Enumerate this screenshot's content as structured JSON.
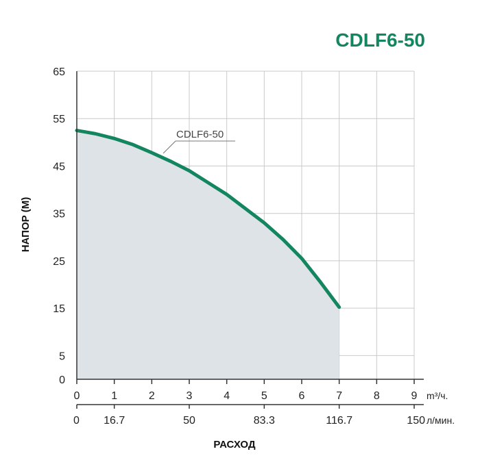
{
  "chart_data": {
    "type": "area",
    "title": "CDLF6-50",
    "ylabel": "НАПОР (М)",
    "xlabel": "РАСХОД",
    "ylim": [
      0,
      65
    ],
    "xlim": [
      0,
      9
    ],
    "y_ticks": [
      "0",
      "5",
      "15",
      "25",
      "35",
      "45",
      "55",
      "65"
    ],
    "y_tick_values": [
      0,
      5,
      15,
      25,
      35,
      45,
      55,
      65
    ],
    "x_ticks_m3h": [
      "0",
      "1",
      "2",
      "3",
      "4",
      "5",
      "6",
      "7",
      "8",
      "9"
    ],
    "x_unit_m3h": "m³/ч.",
    "x_ticks_lmin": [
      "0",
      "16.7",
      "50",
      "83.3",
      "116.7",
      "150"
    ],
    "x_ticks_lmin_positions": [
      0,
      1,
      3,
      5,
      7,
      9
    ],
    "x_unit_lmin": "л/мин.",
    "series": [
      {
        "name": "CDLF6-50",
        "x": [
          0,
          0.5,
          1,
          1.5,
          2,
          2.5,
          3,
          3.5,
          4,
          4.5,
          5,
          5.5,
          6,
          6.5,
          7
        ],
        "values": [
          52.5,
          51.8,
          50.8,
          49.5,
          47.8,
          46.0,
          44.0,
          41.5,
          39.0,
          36.0,
          33.0,
          29.5,
          25.5,
          20.5,
          15.2
        ]
      }
    ],
    "series_label_position": "upper-left",
    "grid": true
  },
  "colors": {
    "curve": "#13855f",
    "fill": "#dde3e6",
    "grid": "#c9c9c9",
    "axis": "#333333",
    "title": "#13855f"
  }
}
